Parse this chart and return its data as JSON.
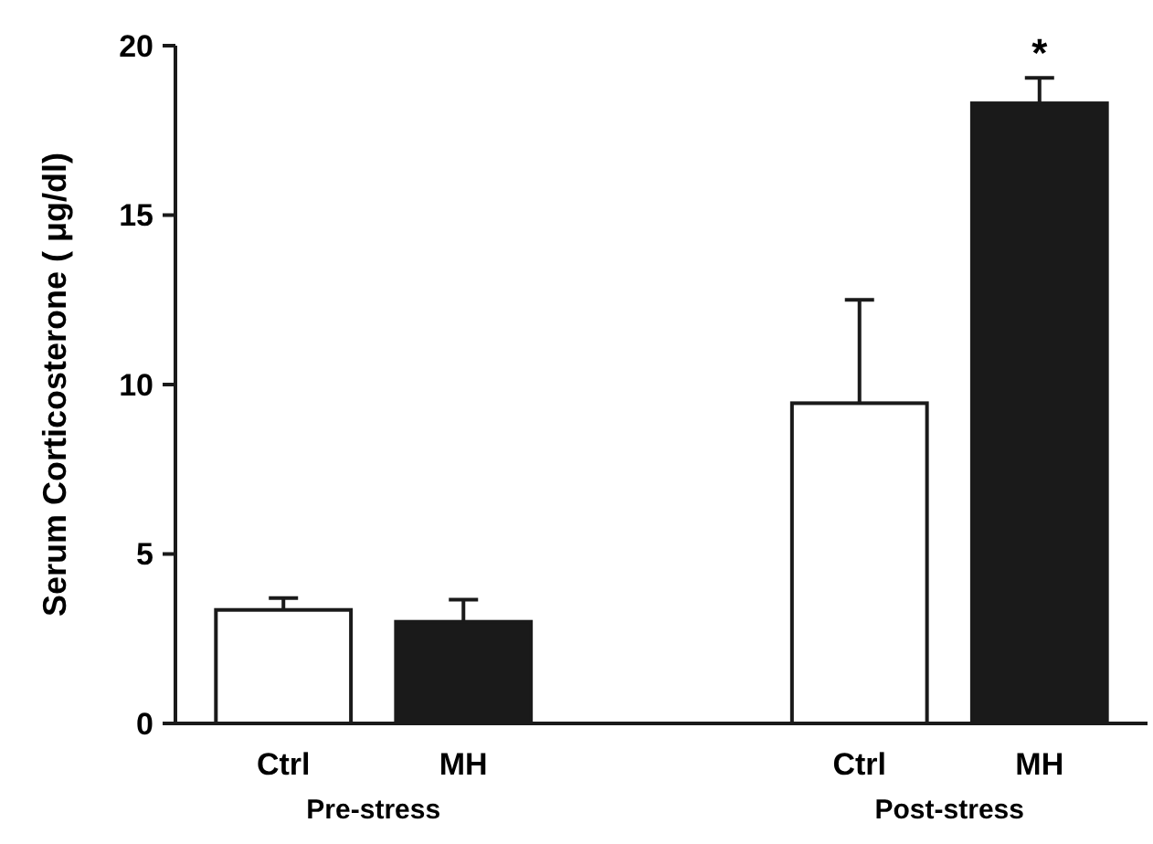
{
  "chart_data": {
    "type": "bar",
    "ylabel": "Serum Corticosterone ( μg/dl)",
    "categories": [
      "Ctrl",
      "MH",
      "Ctrl",
      "MH"
    ],
    "values": [
      3.35,
      3.0,
      9.45,
      18.3
    ],
    "colors": [
      "#ffffff",
      "#1a1a1a",
      "#ffffff",
      "#1a1a1a"
    ],
    "errors": [
      [
        3.35,
        3.7
      ],
      [
        3.0,
        3.65
      ],
      [
        9.45,
        12.5
      ],
      [
        18.3,
        19.05
      ]
    ],
    "value_labels": [
      null,
      null,
      null,
      "*"
    ],
    "annotations": [
      "Pre-stress",
      "Post-stress"
    ],
    "ylim": [
      0,
      20
    ],
    "yticks": [
      0,
      5,
      10,
      15,
      20
    ],
    "grid": false
  }
}
